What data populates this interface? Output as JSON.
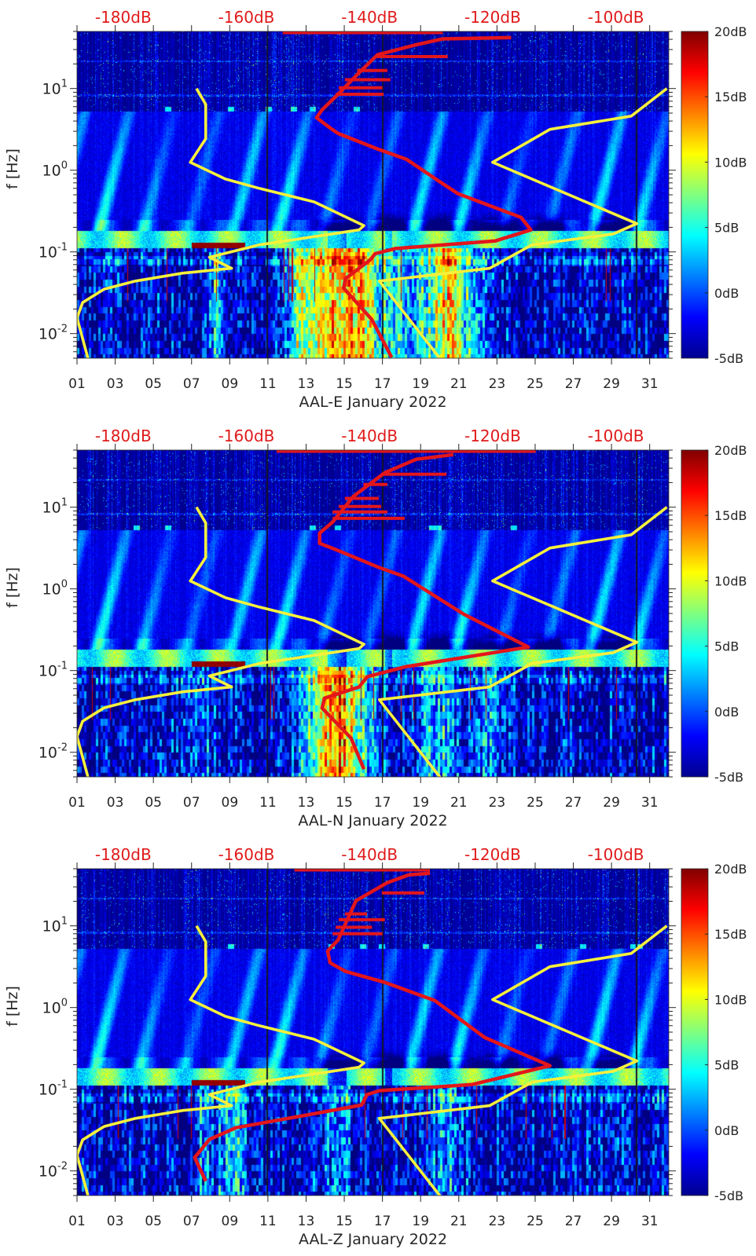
{
  "figure": {
    "colors": {
      "median_psd": "#e3161b",
      "noise_models": "#f7f03c",
      "top_axis_text": "#e01a1a",
      "axis_text": "#262626"
    }
  },
  "chart_data": [
    {
      "type": "heatmap",
      "xlabel": "AAL-E January 2022",
      "ylabel": "f [Hz]",
      "xlim": [
        1,
        32
      ],
      "ylim": [
        0.005,
        50
      ],
      "yscale": "log",
      "x_ticks": [
        1,
        3,
        5,
        7,
        9,
        11,
        13,
        15,
        17,
        19,
        21,
        23,
        25,
        27,
        29,
        31
      ],
      "x_tick_labels": [
        "01",
        "03",
        "05",
        "07",
        "09",
        "11",
        "13",
        "15",
        "17",
        "19",
        "21",
        "23",
        "25",
        "27",
        "29",
        "31"
      ],
      "y_ticks": [
        10,
        1,
        0.1,
        0.01
      ],
      "y_tick_labels": [
        {
          "base": "10",
          "exp": "1"
        },
        {
          "base": "10",
          "exp": "0"
        },
        {
          "base": "10",
          "exp": "-1"
        },
        {
          "base": "10",
          "exp": "-2"
        }
      ],
      "top_axis": {
        "xlim": [
          -187.5,
          -91.4
        ],
        "ticks": [
          -180,
          -160,
          -140,
          -120,
          -100
        ],
        "labels": [
          "-180dB",
          "-160dB",
          "-140dB",
          "-120dB",
          "-100dB"
        ]
      },
      "colorbar": {
        "range": [
          -5,
          20
        ],
        "colormap": "jet",
        "ticks": [
          20,
          15,
          10,
          5,
          0,
          -5
        ],
        "labels": [
          "20dB",
          "15dB",
          "10dB",
          "5dB",
          "0dB",
          "-5dB"
        ]
      },
      "low_noise_model": [
        [
          -168.1,
          10
        ],
        [
          -166.6,
          6.4
        ],
        [
          -166.6,
          2.43
        ],
        [
          -169.1,
          1.25
        ],
        [
          -163.4,
          0.78
        ],
        [
          -157.9,
          0.6
        ],
        [
          -149.0,
          0.41
        ],
        [
          -140.9,
          0.21
        ],
        [
          -141.7,
          0.186
        ],
        [
          -157.9,
          0.122
        ],
        [
          -166.0,
          0.086
        ],
        [
          -162.4,
          0.063
        ],
        [
          -170.3,
          0.055
        ],
        [
          -178.0,
          0.044
        ],
        [
          -183.1,
          0.035
        ],
        [
          -186.6,
          0.024
        ],
        [
          -187.5,
          0.0156
        ],
        [
          -185.7,
          0.0049
        ]
      ],
      "high_noise_model": [
        [
          -91.7,
          10
        ],
        [
          -97.5,
          4.6
        ],
        [
          -110.7,
          3.16
        ],
        [
          -120.0,
          1.25
        ],
        [
          -96.6,
          0.222
        ],
        [
          -100.4,
          0.166
        ],
        [
          -113.6,
          0.122
        ],
        [
          -120.5,
          0.063
        ],
        [
          -138.4,
          0.044
        ],
        [
          -128.5,
          0.0049
        ]
      ],
      "median_psd": [
        [
          -136.4,
          0.0051
        ],
        [
          -139.6,
          0.0148
        ],
        [
          -144.2,
          0.036
        ],
        [
          -143.9,
          0.047
        ],
        [
          -139.8,
          0.081
        ],
        [
          -139.1,
          0.095
        ],
        [
          -135.8,
          0.11
        ],
        [
          -119.6,
          0.136
        ],
        [
          -113.8,
          0.186
        ],
        [
          -115.4,
          0.265
        ],
        [
          -125.6,
          0.515
        ],
        [
          -128.9,
          0.75
        ],
        [
          -134.0,
          1.36
        ],
        [
          -138.7,
          1.82
        ],
        [
          -145.1,
          2.82
        ],
        [
          -146.4,
          3.3
        ],
        [
          -148.6,
          4.4
        ],
        [
          -147.7,
          5.5
        ],
        [
          -145.1,
          8.5
        ],
        [
          -141.7,
          15.6
        ],
        [
          -138.7,
          25.9
        ],
        [
          -132.4,
          34.4
        ],
        [
          -128.1,
          40.5
        ],
        [
          -117.0,
          42
        ]
      ],
      "median_psd_spikes": [
        [
          50,
          -154.1,
          -128.1
        ],
        [
          16.6,
          -142,
          -137.1
        ],
        [
          12.8,
          -144,
          -136.6
        ],
        [
          10.2,
          -145,
          -137.9
        ],
        [
          8.5,
          -145.5,
          -137.7
        ],
        [
          24.6,
          -139,
          -127.3
        ]
      ]
    },
    {
      "type": "heatmap",
      "xlabel": "AAL-N January 2022",
      "ylabel": "f [Hz]",
      "xlim": [
        1,
        32
      ],
      "ylim": [
        0.005,
        50
      ],
      "yscale": "log",
      "x_ticks": [
        1,
        3,
        5,
        7,
        9,
        11,
        13,
        15,
        17,
        19,
        21,
        23,
        25,
        27,
        29,
        31
      ],
      "x_tick_labels": [
        "01",
        "03",
        "05",
        "07",
        "09",
        "11",
        "13",
        "15",
        "17",
        "19",
        "21",
        "23",
        "25",
        "27",
        "29",
        "31"
      ],
      "y_ticks": [
        10,
        1,
        0.1,
        0.01
      ],
      "y_tick_labels": [
        {
          "base": "10",
          "exp": "1"
        },
        {
          "base": "10",
          "exp": "0"
        },
        {
          "base": "10",
          "exp": "-1"
        },
        {
          "base": "10",
          "exp": "-2"
        }
      ],
      "top_axis": {
        "xlim": [
          -187.5,
          -91.4
        ],
        "ticks": [
          -180,
          -160,
          -140,
          -120,
          -100
        ],
        "labels": [
          "-180dB",
          "-160dB",
          "-140dB",
          "-120dB",
          "-100dB"
        ]
      },
      "colorbar": {
        "range": [
          -5,
          20
        ],
        "colormap": "jet",
        "ticks": [
          20,
          15,
          10,
          5,
          0,
          -5
        ],
        "labels": [
          "20dB",
          "15dB",
          "10dB",
          "5dB",
          "0dB",
          "-5dB"
        ]
      },
      "low_noise_model": [
        [
          -168.1,
          10
        ],
        [
          -166.6,
          6.4
        ],
        [
          -166.6,
          2.43
        ],
        [
          -169.1,
          1.25
        ],
        [
          -163.4,
          0.78
        ],
        [
          -157.9,
          0.6
        ],
        [
          -149.0,
          0.41
        ],
        [
          -140.9,
          0.21
        ],
        [
          -141.7,
          0.186
        ],
        [
          -157.9,
          0.122
        ],
        [
          -166.0,
          0.086
        ],
        [
          -162.4,
          0.063
        ],
        [
          -170.3,
          0.055
        ],
        [
          -178.0,
          0.044
        ],
        [
          -183.1,
          0.035
        ],
        [
          -186.6,
          0.024
        ],
        [
          -187.5,
          0.0156
        ],
        [
          -185.7,
          0.0049
        ]
      ],
      "high_noise_model": [
        [
          -91.7,
          10
        ],
        [
          -97.5,
          4.6
        ],
        [
          -110.7,
          3.16
        ],
        [
          -120.0,
          1.25
        ],
        [
          -96.6,
          0.222
        ],
        [
          -100.4,
          0.166
        ],
        [
          -113.6,
          0.122
        ],
        [
          -120.5,
          0.063
        ],
        [
          -138.4,
          0.044
        ],
        [
          -128.5,
          0.0049
        ]
      ],
      "median_psd": [
        [
          -140.9,
          0.0062
        ],
        [
          -143.0,
          0.0149
        ],
        [
          -147.7,
          0.0347
        ],
        [
          -147.3,
          0.046
        ],
        [
          -141.7,
          0.063
        ],
        [
          -140.4,
          0.084
        ],
        [
          -134.0,
          0.112
        ],
        [
          -114.2,
          0.194
        ],
        [
          -124.7,
          0.49
        ],
        [
          -134.5,
          1.43
        ],
        [
          -138.7,
          1.86
        ],
        [
          -145.5,
          3.03
        ],
        [
          -148.1,
          3.61
        ],
        [
          -148.1,
          4.82
        ],
        [
          -146.0,
          6.56
        ],
        [
          -142.6,
          13.6
        ],
        [
          -137.5,
          26.5
        ],
        [
          -132.4,
          38.6
        ],
        [
          -126.4,
          44
        ]
      ],
      "median_psd_spikes": [
        [
          50,
          -155.1,
          -113.0
        ],
        [
          25.3,
          -138,
          -127.5
        ],
        [
          7.3,
          -146,
          -134.3
        ],
        [
          8.75,
          -146,
          -137.1
        ],
        [
          10.2,
          -145,
          -138.1
        ],
        [
          12.8,
          -144,
          -138.5
        ],
        [
          19,
          -141,
          -137.1
        ]
      ]
    },
    {
      "type": "heatmap",
      "xlabel": "AAL-Z January 2022",
      "ylabel": "f [Hz]",
      "xlim": [
        1,
        32
      ],
      "ylim": [
        0.005,
        50
      ],
      "yscale": "log",
      "x_ticks": [
        1,
        3,
        5,
        7,
        9,
        11,
        13,
        15,
        17,
        19,
        21,
        23,
        25,
        27,
        29,
        31
      ],
      "x_tick_labels": [
        "01",
        "03",
        "05",
        "07",
        "09",
        "11",
        "13",
        "15",
        "17",
        "19",
        "21",
        "23",
        "25",
        "27",
        "29",
        "31"
      ],
      "y_ticks": [
        10,
        1,
        0.1,
        0.01
      ],
      "y_tick_labels": [
        {
          "base": "10",
          "exp": "1"
        },
        {
          "base": "10",
          "exp": "0"
        },
        {
          "base": "10",
          "exp": "-1"
        },
        {
          "base": "10",
          "exp": "-2"
        }
      ],
      "top_axis": {
        "xlim": [
          -187.5,
          -91.4
        ],
        "ticks": [
          -180,
          -160,
          -140,
          -120,
          -100
        ],
        "labels": [
          "-180dB",
          "-160dB",
          "-140dB",
          "-120dB",
          "-100dB"
        ]
      },
      "colorbar": {
        "range": [
          -5,
          20
        ],
        "colormap": "jet",
        "ticks": [
          20,
          15,
          10,
          5,
          0,
          -5
        ],
        "labels": [
          "20dB",
          "15dB",
          "10dB",
          "5dB",
          "0dB",
          "-5dB"
        ]
      },
      "low_noise_model": [
        [
          -168.1,
          10
        ],
        [
          -166.6,
          6.4
        ],
        [
          -166.6,
          2.43
        ],
        [
          -169.1,
          1.25
        ],
        [
          -163.4,
          0.78
        ],
        [
          -157.9,
          0.6
        ],
        [
          -149.0,
          0.41
        ],
        [
          -140.9,
          0.21
        ],
        [
          -141.7,
          0.186
        ],
        [
          -157.9,
          0.122
        ],
        [
          -166.0,
          0.086
        ],
        [
          -162.4,
          0.063
        ],
        [
          -170.3,
          0.055
        ],
        [
          -178.0,
          0.044
        ],
        [
          -183.1,
          0.035
        ],
        [
          -186.6,
          0.024
        ],
        [
          -187.5,
          0.0156
        ],
        [
          -185.7,
          0.0049
        ]
      ],
      "high_noise_model": [
        [
          -91.7,
          10
        ],
        [
          -97.5,
          4.6
        ],
        [
          -110.7,
          3.16
        ],
        [
          -120.0,
          1.25
        ],
        [
          -96.6,
          0.222
        ],
        [
          -100.4,
          0.166
        ],
        [
          -113.6,
          0.122
        ],
        [
          -120.5,
          0.063
        ],
        [
          -138.4,
          0.044
        ],
        [
          -128.5,
          0.0049
        ]
      ],
      "median_psd": [
        [
          -166.6,
          0.0075
        ],
        [
          -168.4,
          0.0146
        ],
        [
          -166.0,
          0.0243
        ],
        [
          -161.7,
          0.0338
        ],
        [
          -151.1,
          0.047
        ],
        [
          -141.3,
          0.064
        ],
        [
          -140.4,
          0.086
        ],
        [
          -138.4,
          0.096
        ],
        [
          -123.4,
          0.114
        ],
        [
          -110.7,
          0.194
        ],
        [
          -121.3,
          0.43
        ],
        [
          -129.4,
          1.22
        ],
        [
          -137.5,
          2.03
        ],
        [
          -143.9,
          2.77
        ],
        [
          -146.4,
          3.53
        ],
        [
          -146.8,
          4.92
        ],
        [
          -145.1,
          6.71
        ],
        [
          -142.2,
          20.3
        ],
        [
          -137.1,
          33.8
        ],
        [
          -133.6,
          42.2
        ],
        [
          -130.2,
          44
        ]
      ],
      "median_psd_spikes": [
        [
          50,
          -152.2,
          -130.2
        ],
        [
          25.3,
          -138,
          -131.1
        ],
        [
          11.9,
          -145,
          -137.5
        ],
        [
          8.0,
          -146,
          -137.9
        ],
        [
          9.6,
          -145.5,
          -139.6
        ],
        [
          14,
          -144,
          -140.4
        ]
      ]
    }
  ]
}
